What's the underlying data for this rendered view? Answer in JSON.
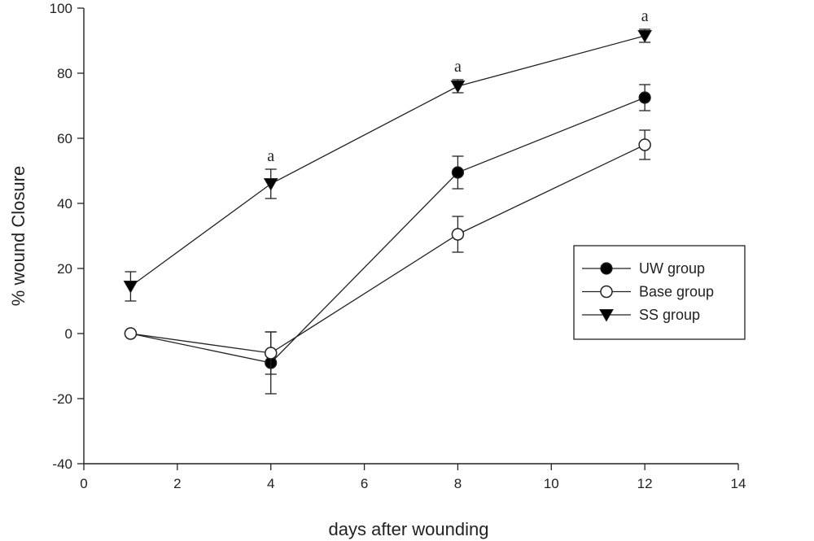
{
  "chart_data": {
    "type": "line",
    "xlabel": "days after wounding",
    "ylabel": "% wound Closure",
    "xlim": [
      0,
      14
    ],
    "ylim": [
      -40,
      100
    ],
    "xticks": [
      "0",
      "2",
      "4",
      "6",
      "8",
      "10",
      "12",
      "14"
    ],
    "yticks": [
      "-40",
      "-20",
      "0",
      "20",
      "40",
      "60",
      "80",
      "100"
    ],
    "grid": false,
    "legend_position": "right",
    "series": [
      {
        "name": "UW group",
        "marker": "filled-circle",
        "x": [
          1,
          4,
          8,
          12
        ],
        "y": [
          0,
          -9,
          49.5,
          72.5
        ],
        "err": [
          0,
          9.5,
          5,
          4
        ]
      },
      {
        "name": "Base group",
        "marker": "open-circle",
        "x": [
          1,
          4,
          8,
          12
        ],
        "y": [
          0,
          -6,
          30.5,
          58
        ],
        "err": [
          0,
          6.5,
          5.5,
          4.5
        ]
      },
      {
        "name": "SS group",
        "marker": "filled-triangle-down",
        "x": [
          1,
          4,
          8,
          12
        ],
        "y": [
          14.5,
          46,
          76,
          91.5
        ],
        "err": [
          4.5,
          4.5,
          2,
          2
        ]
      }
    ],
    "annotations": [
      {
        "text": "a",
        "x": 4
      },
      {
        "text": "a",
        "x": 8
      },
      {
        "text": "a",
        "x": 12
      }
    ]
  },
  "colors": {
    "line": "#222222",
    "marker_fill": "#000000",
    "open_fill": "#ffffff"
  }
}
